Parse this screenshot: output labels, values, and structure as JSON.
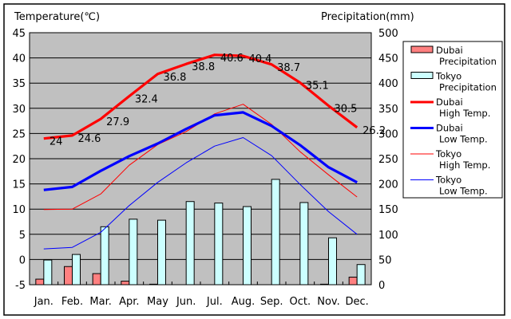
{
  "chart_data": {
    "type": "bar+line",
    "title": "",
    "ylabel_left": "Temperature(℃)",
    "ylabel_right": "Precipitation(mm)",
    "categories": [
      "Jan.",
      "Feb.",
      "Mar.",
      "Apr.",
      "May",
      "Jun.",
      "Jul.",
      "Aug.",
      "Sep.",
      "Oct.",
      "Nov.",
      "Dec."
    ],
    "y_left": {
      "min": -5,
      "max": 45,
      "step": 5,
      "ticks": [
        "45",
        "40",
        "35",
        "30",
        "25",
        "20",
        "15",
        "10",
        "5",
        "0",
        "-5"
      ]
    },
    "y_right": {
      "min": 0,
      "max": 500,
      "step": 50,
      "ticks": [
        "500",
        "450",
        "400",
        "350",
        "300",
        "250",
        "200",
        "150",
        "100",
        "50",
        "0"
      ]
    },
    "grid": true,
    "legend_position": "right",
    "bar_series": [
      {
        "name": "Dubai Precipitation",
        "legend": [
          "Dubai",
          "Precipitation"
        ],
        "axis": "right",
        "color": "#ff8080",
        "values": [
          11,
          36,
          22,
          7,
          1,
          0,
          0,
          0,
          0,
          0,
          1,
          15
        ]
      },
      {
        "name": "Tokyo Precipitation",
        "legend": [
          "Tokyo",
          "Precipitation"
        ],
        "axis": "right",
        "color": "#ccffff",
        "values": [
          49,
          60,
          115,
          130,
          128,
          165,
          162,
          155,
          209,
          163,
          93,
          40
        ]
      }
    ],
    "line_series": [
      {
        "name": "Dubai High Temp.",
        "legend": [
          "Dubai",
          "High Temp."
        ],
        "axis": "left",
        "color": "#ff0000",
        "weight": "thick",
        "values": [
          24,
          24.6,
          27.9,
          32.4,
          36.8,
          38.8,
          40.6,
          40.4,
          38.7,
          35.1,
          30.5,
          26.2
        ],
        "data_labels": [
          "24",
          "24.6",
          "27.9",
          "32.4",
          "36.8",
          "38.8",
          "40.6",
          "40.4",
          "38.7",
          "35.1",
          "30.5",
          "26.2"
        ]
      },
      {
        "name": "Dubai Low Temp.",
        "legend": [
          "Dubai",
          "Low Temp."
        ],
        "axis": "left",
        "color": "#0000ff",
        "weight": "thick",
        "values": [
          13.8,
          14.4,
          17.6,
          20.5,
          23.0,
          25.9,
          28.6,
          29.2,
          26.5,
          22.7,
          18.3,
          15.3
        ]
      },
      {
        "name": "Tokyo High Temp.",
        "legend": [
          "Tokyo",
          "High Temp."
        ],
        "axis": "left",
        "color": "#ff0000",
        "weight": "thin",
        "values": [
          9.9,
          10.0,
          13.0,
          18.7,
          22.8,
          25.4,
          28.9,
          30.8,
          26.8,
          21.4,
          16.8,
          12.4
        ]
      },
      {
        "name": "Tokyo Low Temp.",
        "legend": [
          "Tokyo",
          "Low Temp."
        ],
        "axis": "left",
        "color": "#0000ff",
        "weight": "thin",
        "values": [
          2.1,
          2.4,
          5.4,
          10.7,
          15.3,
          19.2,
          22.5,
          24.2,
          20.6,
          14.9,
          9.5,
          5.0
        ]
      }
    ],
    "colors": {
      "plot_background": "#c0c0c0",
      "frame": "#000000"
    }
  }
}
